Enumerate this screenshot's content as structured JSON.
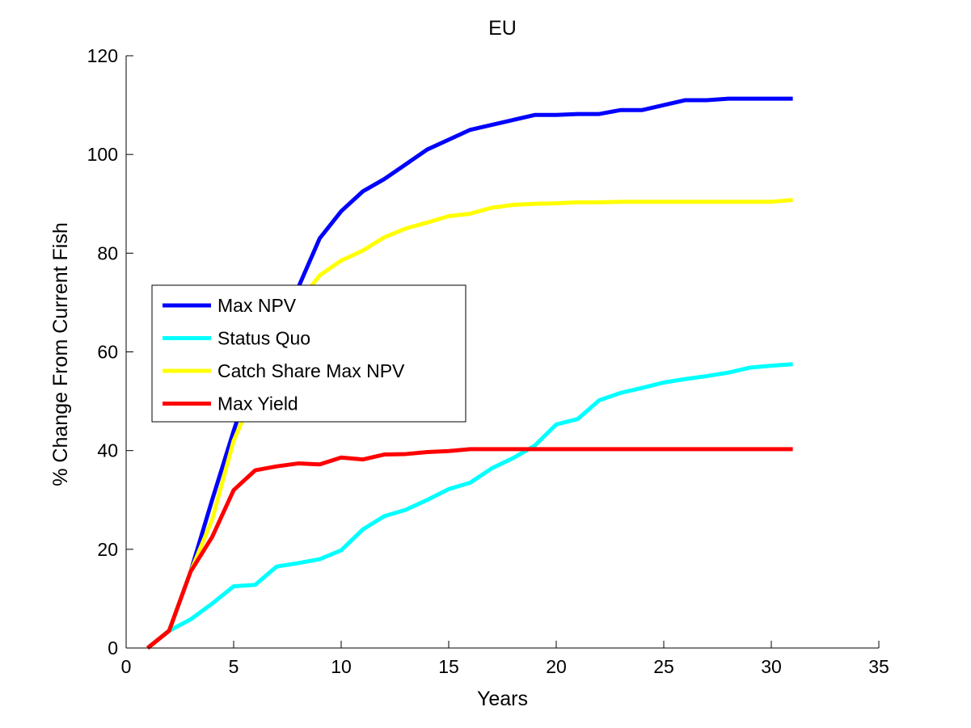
{
  "chart_data": {
    "type": "line",
    "title": "EU",
    "xlabel": "Years",
    "ylabel": "% Change From Current Fish",
    "xlim": [
      0,
      35
    ],
    "ylim": [
      0,
      120
    ],
    "xticks": [
      0,
      5,
      10,
      15,
      20,
      25,
      30,
      35
    ],
    "yticks": [
      0,
      20,
      40,
      60,
      80,
      100,
      120
    ],
    "grid": false,
    "legend_position": "center-left",
    "x": [
      1,
      2,
      3,
      4,
      5,
      6,
      7,
      8,
      9,
      10,
      11,
      12,
      13,
      14,
      15,
      16,
      17,
      18,
      19,
      20,
      21,
      22,
      23,
      24,
      25,
      26,
      27,
      28,
      29,
      30,
      31
    ],
    "series": [
      {
        "name": "Max NPV",
        "color": "#0000ff",
        "values": [
          0,
          3.5,
          15.5,
          30,
          44,
          57,
          65,
          73,
          83,
          88.5,
          92.5,
          95,
          98,
          101,
          103,
          105,
          106,
          107,
          108,
          108,
          108.2,
          108.2,
          109,
          109,
          110,
          111,
          111,
          111.3,
          111.3,
          111.3,
          111.3
        ]
      },
      {
        "name": "Status Quo",
        "color": "#00ffff",
        "values": [
          0,
          3.5,
          5.8,
          9,
          12.5,
          12.8,
          16.5,
          17.2,
          18,
          19.8,
          24,
          26.7,
          28,
          30,
          32.2,
          33.5,
          36.4,
          38.5,
          41,
          45.3,
          46.4,
          50.2,
          51.7,
          52.7,
          53.8,
          54.5,
          55.1,
          55.8,
          56.8,
          57.2,
          57.5
        ]
      },
      {
        "name": "Catch Share Max NPV",
        "color": "#ffff00",
        "values": [
          0,
          3.5,
          15.5,
          26,
          42,
          52,
          64,
          70,
          75.5,
          78.5,
          80.5,
          83.2,
          85,
          86.2,
          87.5,
          88,
          89.2,
          89.8,
          90,
          90.1,
          90.3,
          90.3,
          90.4,
          90.4,
          90.4,
          90.4,
          90.4,
          90.4,
          90.4,
          90.4,
          90.8
        ]
      },
      {
        "name": "Max Yield",
        "color": "#ff0000",
        "values": [
          0,
          3.5,
          15.5,
          22.5,
          32,
          36,
          36.8,
          37.4,
          37.2,
          38.6,
          38.2,
          39.2,
          39.3,
          39.7,
          39.9,
          40.3,
          40.3,
          40.3,
          40.3,
          40.3,
          40.3,
          40.3,
          40.3,
          40.3,
          40.3,
          40.3,
          40.3,
          40.3,
          40.3,
          40.3,
          40.3
        ]
      }
    ]
  }
}
